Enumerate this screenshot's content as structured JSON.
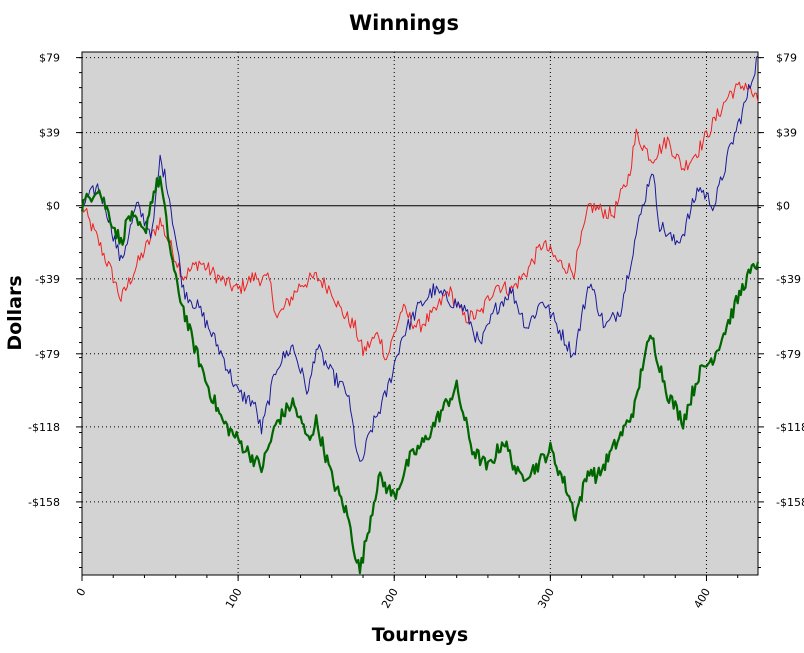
{
  "chart_data": {
    "type": "line",
    "title": "Winnings",
    "xlabel": "Tourneys",
    "ylabel": "Dollars",
    "xlim": [
      0,
      433
    ],
    "ylim": [
      -197,
      82
    ],
    "x_ticks": [
      0,
      100,
      200,
      300,
      400
    ],
    "x_tick_labels": [
      "0",
      "100",
      "200",
      "300",
      "400"
    ],
    "y_ticks": [
      79,
      39,
      0,
      -39,
      -79,
      -118,
      -158
    ],
    "y_tick_labels": [
      "$79",
      "$39",
      "$0",
      "-$39",
      "-$79",
      "-$118",
      "-$158"
    ],
    "grid": true,
    "legend": "none",
    "background": "#d3d3d3",
    "series": [
      {
        "color": "#ee2222",
        "x": [
          0,
          10,
          20,
          25,
          35,
          50,
          60,
          65,
          75,
          90,
          100,
          110,
          120,
          125,
          140,
          150,
          160,
          165,
          175,
          180,
          190,
          195,
          205,
          215,
          225,
          235,
          245,
          255,
          265,
          275,
          285,
          295,
          305,
          315,
          325,
          340,
          350,
          355,
          365,
          375,
          385,
          395,
          405,
          415,
          425,
          433
        ],
        "values": [
          0,
          -18,
          -38,
          -50,
          -32,
          -8,
          -28,
          -38,
          -30,
          -40,
          -45,
          -38,
          -40,
          -60,
          -42,
          -38,
          -45,
          -55,
          -65,
          -78,
          -68,
          -82,
          -55,
          -65,
          -58,
          -45,
          -60,
          -58,
          -42,
          -45,
          -35,
          -20,
          -30,
          -35,
          0,
          -5,
          15,
          38,
          25,
          35,
          20,
          30,
          45,
          60,
          65,
          55
        ]
      },
      {
        "color": "#1a1a99",
        "x": [
          0,
          10,
          15,
          25,
          35,
          45,
          50,
          55,
          65,
          75,
          90,
          100,
          110,
          115,
          125,
          135,
          145,
          150,
          160,
          170,
          178,
          185,
          195,
          205,
          215,
          225,
          235,
          245,
          255,
          265,
          275,
          285,
          295,
          305,
          315,
          325,
          335,
          345,
          355,
          365,
          370,
          380,
          385,
          395,
          405,
          415,
          425,
          433
        ],
        "values": [
          0,
          10,
          0,
          -30,
          0,
          -15,
          25,
          10,
          -45,
          -55,
          -80,
          -100,
          -105,
          -120,
          -85,
          -75,
          -100,
          -75,
          -90,
          -100,
          -140,
          -120,
          -100,
          -70,
          -55,
          -45,
          -50,
          -55,
          -75,
          -55,
          -45,
          -65,
          -50,
          -65,
          -80,
          -40,
          -65,
          -55,
          -15,
          20,
          -10,
          -20,
          -15,
          10,
          0,
          30,
          55,
          80
        ]
      },
      {
        "color": "#006600",
        "x": [
          0,
          10,
          20,
          25,
          30,
          40,
          45,
          50,
          55,
          60,
          70,
          80,
          90,
          100,
          110,
          115,
          125,
          135,
          145,
          150,
          160,
          170,
          175,
          178,
          190,
          200,
          210,
          220,
          230,
          240,
          250,
          260,
          270,
          280,
          290,
          300,
          310,
          316,
          325,
          330,
          340,
          350,
          355,
          360,
          365,
          375,
          385,
          395,
          405,
          415,
          425,
          433
        ],
        "values": [
          0,
          10,
          -10,
          -20,
          -5,
          -15,
          5,
          15,
          -15,
          -40,
          -70,
          -95,
          -115,
          -125,
          -135,
          -140,
          -115,
          -105,
          -125,
          -115,
          -145,
          -165,
          -185,
          -195,
          -145,
          -155,
          -135,
          -125,
          -110,
          -97,
          -130,
          -140,
          -125,
          -145,
          -140,
          -130,
          -150,
          -165,
          -140,
          -145,
          -130,
          -115,
          -105,
          -80,
          -70,
          -100,
          -115,
          -90,
          -80,
          -60,
          -40,
          -30
        ]
      }
    ]
  }
}
